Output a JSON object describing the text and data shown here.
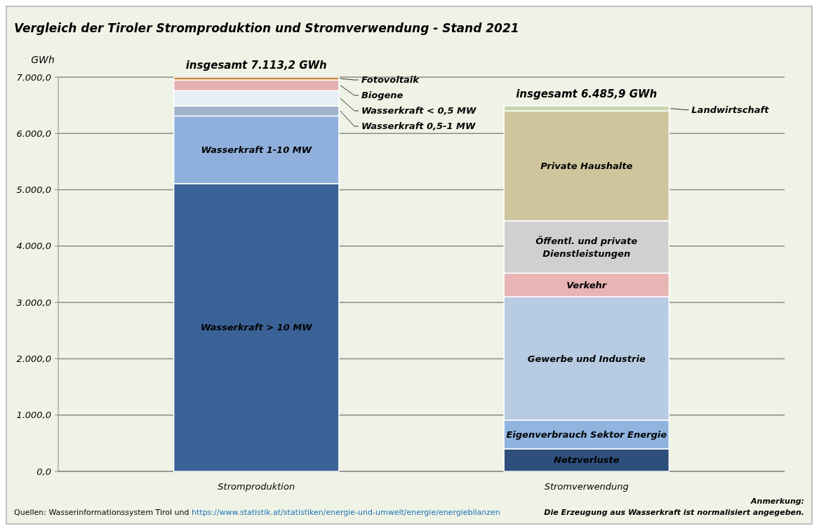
{
  "chart_data": {
    "type": "bar",
    "title": "Vergleich der Tiroler Stromproduktion  und Stromverwendung  - Stand 2021",
    "ylabel": "GWh",
    "categories": [
      "Stromproduktion",
      "Stromverwendung"
    ],
    "stacked": true,
    "series": [
      {
        "name": "Wasserkraft > 10 MW",
        "color": "#3b6296",
        "values": [
          5110,
          null
        ]
      },
      {
        "name": "Wasserkraft 1-10 MW",
        "color": "#8fb0dc",
        "values": [
          1200,
          null
        ]
      },
      {
        "name": "Wasserkraft 0,5-1 MW",
        "color": "#9fb4cc",
        "values": [
          180,
          null
        ]
      },
      {
        "name": "Wasserkraft < 0,5 MW",
        "color": "#e8eef5",
        "values": [
          270,
          null
        ]
      },
      {
        "name": "Biogene",
        "color": "#e6b0b0",
        "values": [
          190,
          null
        ]
      },
      {
        "name": "Fotovoltaik",
        "color": "#c8843c",
        "values": [
          50,
          null
        ]
      },
      {
        "name": "Netzverluste",
        "color": "#2e4f7c",
        "values": [
          null,
          400
        ]
      },
      {
        "name": "Eigenverbrauch Sektor Energie",
        "color": "#8fb4e0",
        "values": [
          null,
          510
        ]
      },
      {
        "name": "Gewerbe und Industrie",
        "color": "#b7cbe2",
        "values": [
          null,
          2190
        ]
      },
      {
        "name": "Verkehr",
        "color": "#e8b4b4",
        "values": [
          null,
          420
        ]
      },
      {
        "name": "Öffentl. und private Dienstleistungen",
        "color": "#d0d0d0",
        "values": [
          null,
          930
        ]
      },
      {
        "name": "Private Haushalte",
        "color": "#cfc59c",
        "values": [
          null,
          1950
        ]
      },
      {
        "name": "Landwirtschaft",
        "color": "#c8d4b0",
        "values": [
          null,
          90
        ]
      }
    ],
    "totals": [
      "insgesamt 7.113,2 GWh",
      "insgesamt 6.485,9 GWh"
    ],
    "ylim": [
      0,
      7000
    ],
    "yticks": [
      {
        "value": 0,
        "label": "0,0"
      },
      {
        "value": 1000,
        "label": "1.000,0"
      },
      {
        "value": 2000,
        "label": "2.000,0"
      },
      {
        "value": 3000,
        "label": "3.000,0"
      },
      {
        "value": 4000,
        "label": "4.000,0"
      },
      {
        "value": 5000,
        "label": "5.000,0"
      },
      {
        "value": 6000,
        "label": "6.000,0"
      },
      {
        "value": 7000,
        "label": "7.000,0"
      }
    ],
    "grid": "y",
    "annotations": [
      "Quellen: Wasserinformationssystem Tirol und https://www.statistik.at/statistiken/energie-und-umwelt/energie/energiebilanzen",
      "Anmerkung:",
      "Die Erzeugung aus Wasserkraft ist normalisiert angegeben."
    ]
  }
}
